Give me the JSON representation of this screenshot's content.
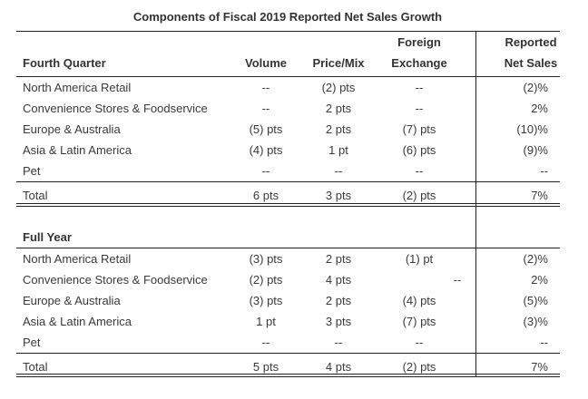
{
  "title": "Components of Fiscal 2019 Reported Net Sales Growth",
  "columns": {
    "volume": "Volume",
    "price_mix": "Price/Mix",
    "fx_line1": "Foreign",
    "fx_line2": "Exchange",
    "net_line1": "Reported",
    "net_line2": "Net Sales"
  },
  "sections": [
    {
      "heading": "Fourth Quarter",
      "rows": [
        {
          "segment": "North America Retail",
          "volume": "--",
          "price_mix": "(2) pts",
          "fx": "--",
          "net": "(2)%"
        },
        {
          "segment": "Convenience Stores & Foodservice",
          "volume": "--",
          "price_mix": "2 pts",
          "fx": "--",
          "net": "2%"
        },
        {
          "segment": "Europe & Australia",
          "volume": "(5) pts",
          "price_mix": "2 pts",
          "fx": "(7) pts",
          "net": "(10)%"
        },
        {
          "segment": "Asia & Latin America",
          "volume": "(4) pts",
          "price_mix": "1 pt",
          "fx": "(6) pts",
          "net": "(9)%"
        },
        {
          "segment": "Pet",
          "volume": "--",
          "price_mix": "--",
          "fx": "--",
          "net": "--"
        }
      ],
      "total": {
        "segment": "Total",
        "volume": "6 pts",
        "price_mix": "3 pts",
        "fx": "(2) pts",
        "net": "7%"
      }
    },
    {
      "heading": "Full Year",
      "rows": [
        {
          "segment": "North America Retail",
          "volume": "(3) pts",
          "price_mix": "2 pts",
          "fx": "(1) pt",
          "net": "(2)%"
        },
        {
          "segment": "Convenience Stores & Foodservice",
          "volume": "(2) pts",
          "price_mix": "4 pts",
          "fx": "--",
          "net": "2%"
        },
        {
          "segment": "Europe & Australia",
          "volume": "(3) pts",
          "price_mix": "2 pts",
          "fx": "(4) pts",
          "net": "(5)%"
        },
        {
          "segment": "Asia & Latin America",
          "volume": "1 pt",
          "price_mix": "3 pts",
          "fx": "(7) pts",
          "net": "(3)%"
        },
        {
          "segment": "Pet",
          "volume": "--",
          "price_mix": "--",
          "fx": "--",
          "net": "--"
        }
      ],
      "total": {
        "segment": "Total",
        "volume": "5 pts",
        "price_mix": "4 pts",
        "fx": "(2) pts",
        "net": "7%"
      }
    }
  ]
}
